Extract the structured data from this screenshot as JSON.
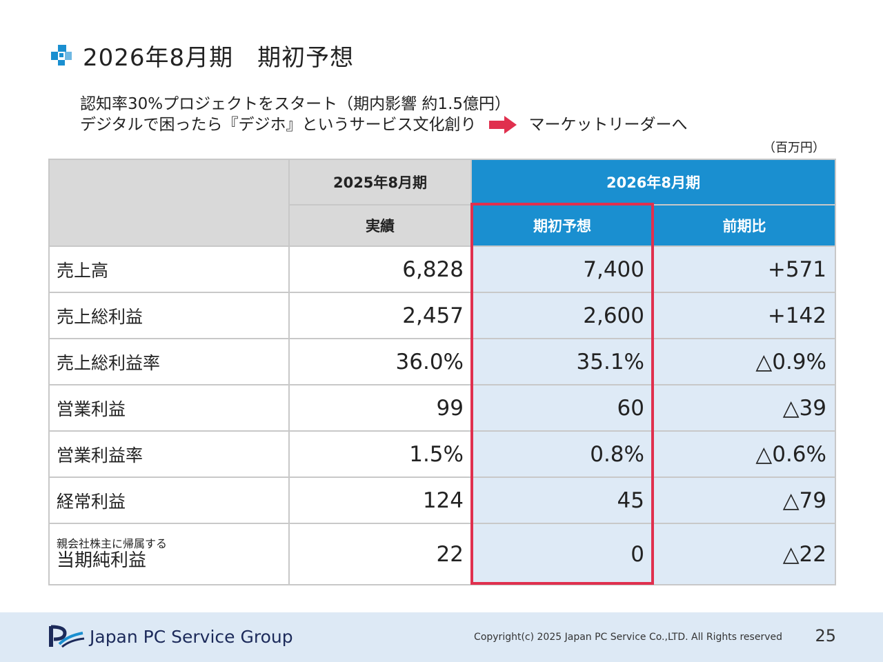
{
  "header": {
    "title": "2026年8月期　期初予想",
    "icon": "blue-cross-icon"
  },
  "subtitle": {
    "line1": "認知率30%プロジェクトをスタート（期内影響 約1.5億円）",
    "line2_left": "デジタルで困ったら『デジホ』というサービス文化創り",
    "line2_right": "マーケットリーダーへ",
    "arrow_color": "#e0304e"
  },
  "unit": "（百万円）",
  "table": {
    "header_prev_period": "2025年8月期",
    "header_curr_period": "2026年8月期",
    "sub_prev": "実績",
    "sub_forecast": "期初予想",
    "sub_change": "前期比",
    "rows": [
      {
        "label": "売上高",
        "prev": "6,828",
        "forecast": "7,400",
        "change": "+571"
      },
      {
        "label": "売上総利益",
        "prev": "2,457",
        "forecast": "2,600",
        "change": "+142"
      },
      {
        "label": "売上総利益率",
        "prev": "36.0%",
        "forecast": "35.1%",
        "change": "△0.9%"
      },
      {
        "label": "営業利益",
        "prev": "99",
        "forecast": "60",
        "change": "△39"
      },
      {
        "label": "営業利益率",
        "prev": "1.5%",
        "forecast": "0.8%",
        "change": "△0.6%"
      },
      {
        "label": "経常利益",
        "prev": "124",
        "forecast": "45",
        "change": "△79"
      },
      {
        "label_small": "親会社株主に帰属する",
        "label": "当期純利益",
        "prev": "22",
        "forecast": "0",
        "change": "△22"
      }
    ]
  },
  "colors": {
    "header_blue": "#1a8fd0",
    "cell_blue": "#deeaf6",
    "highlight_red": "#e0304e",
    "footer_bg": "#dde9f5"
  },
  "footer": {
    "logo_text": "Japan PC Service Group",
    "copyright": "Copyright(c) 2025 Japan PC Service Co.,LTD. All Rights reserved",
    "page_number": "25"
  }
}
